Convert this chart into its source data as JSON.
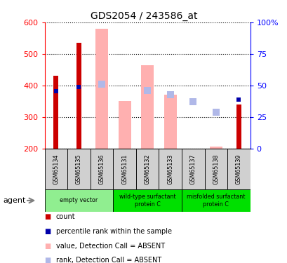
{
  "title": "GDS2054 / 243586_at",
  "samples": [
    "GSM65134",
    "GSM65135",
    "GSM65136",
    "GSM65131",
    "GSM65132",
    "GSM65133",
    "GSM65137",
    "GSM65138",
    "GSM65139"
  ],
  "groups": [
    {
      "label": "empty vector",
      "start": 0,
      "end": 3,
      "color": "#90ee90"
    },
    {
      "label": "wild-type surfactant\nprotein C",
      "start": 3,
      "end": 6,
      "color": "#00e000"
    },
    {
      "label": "misfolded surfactant\nprotein C",
      "start": 6,
      "end": 9,
      "color": "#00e000"
    }
  ],
  "count_values": [
    430,
    535,
    null,
    null,
    null,
    null,
    null,
    null,
    340
  ],
  "rank_values": [
    383,
    395,
    null,
    null,
    null,
    null,
    null,
    null,
    355
  ],
  "absent_bar_values": [
    null,
    null,
    580,
    350,
    465,
    370,
    null,
    207,
    null
  ],
  "absent_rank_values": [
    null,
    null,
    405,
    null,
    385,
    370,
    348,
    315,
    null
  ],
  "ylim_left": [
    200,
    600
  ],
  "ylim_right": [
    0,
    100
  ],
  "yticks_left": [
    200,
    300,
    400,
    500,
    600
  ],
  "yticks_right": [
    0,
    25,
    50,
    75,
    100
  ],
  "bar_color_count": "#cc0000",
  "bar_color_rank": "#0000aa",
  "bar_color_absent_val": "#ffb0b0",
  "bar_color_absent_rank": "#b0b8e8",
  "sample_box_color": "#d0d0d0",
  "legend_items": [
    {
      "color": "#cc0000",
      "label": "count"
    },
    {
      "color": "#0000aa",
      "label": "percentile rank within the sample"
    },
    {
      "color": "#ffb0b0",
      "label": "value, Detection Call = ABSENT"
    },
    {
      "color": "#b0b8e8",
      "label": "rank, Detection Call = ABSENT"
    }
  ]
}
